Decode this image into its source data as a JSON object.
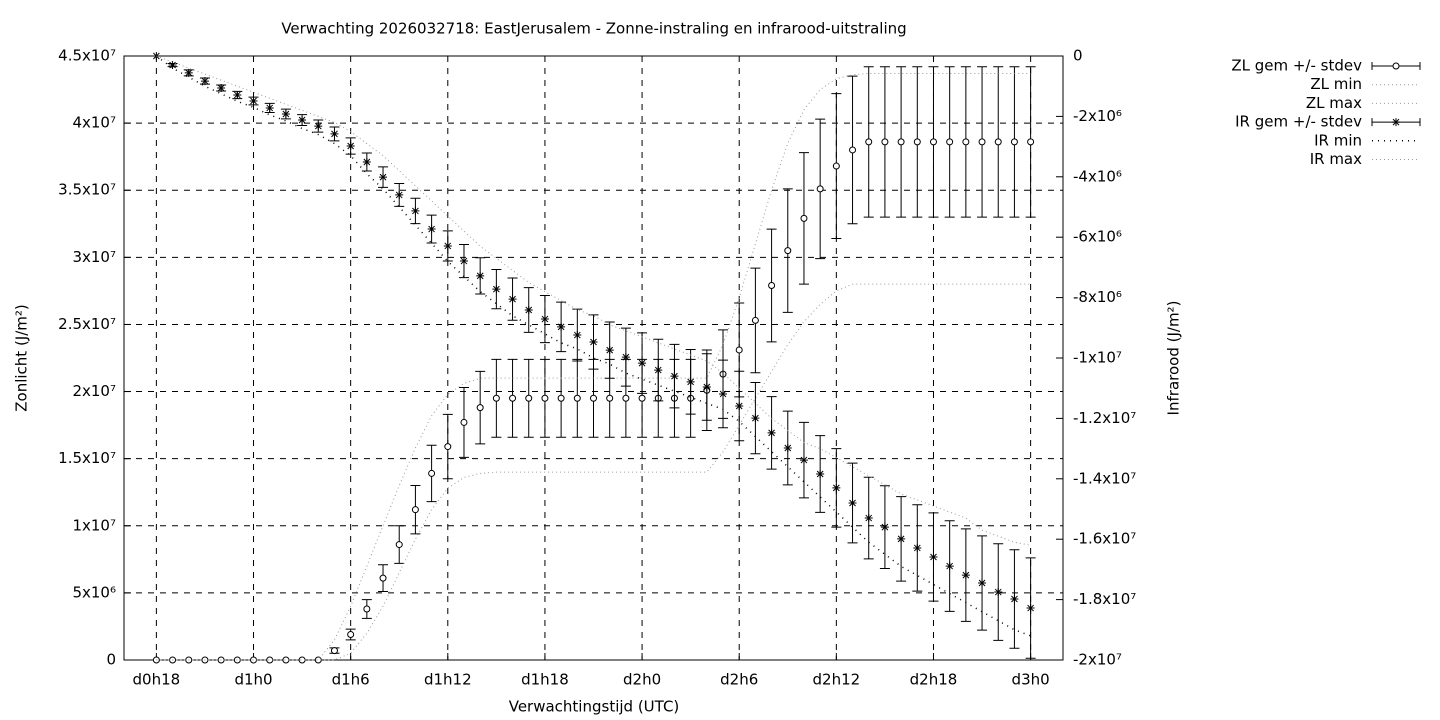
{
  "chart_data": {
    "type": "errorbar",
    "title": "Verwachting 2026032718: EastJerusalem - Zonne-instraling en infrarood-uitstraling",
    "x_label": "Verwachtingstijd (UTC)",
    "y_label": "Zonlicht (J/m²)",
    "y2_label": "Infrarood (J/m²)",
    "grid": true,
    "legend": "right",
    "xlim": [
      16,
      74
    ],
    "xticks": [
      {
        "value": 18,
        "label": "d0h18"
      },
      {
        "value": 24,
        "label": "d1h0"
      },
      {
        "value": 30,
        "label": "d1h6"
      },
      {
        "value": 36,
        "label": "d1h12"
      },
      {
        "value": 42,
        "label": "d1h18"
      },
      {
        "value": 48,
        "label": "d2h0"
      },
      {
        "value": 54,
        "label": "d2h6"
      },
      {
        "value": 60,
        "label": "d2h12"
      },
      {
        "value": 66,
        "label": "d2h18"
      },
      {
        "value": 72,
        "label": "d3h0"
      }
    ],
    "ylim": [
      0,
      45000000.0
    ],
    "yticks": [
      0,
      {
        "value": 5000000.0,
        "label": "5x10⁶"
      },
      {
        "value": 10000000.0,
        "label": "1x10⁷"
      },
      {
        "value": 15000000.0,
        "label": "1.5x10⁷"
      },
      {
        "value": 20000000.0,
        "label": "2x10⁷"
      },
      {
        "value": 25000000.0,
        "label": "2.5x10⁷"
      },
      {
        "value": 30000000.0,
        "label": "3x10⁷"
      },
      {
        "value": 35000000.0,
        "label": "3.5x10⁷"
      },
      {
        "value": 40000000.0,
        "label": "4x10⁷"
      },
      {
        "value": 45000000.0,
        "label": "4.5x10⁷"
      }
    ],
    "y2lim": [
      -20000000.0,
      0
    ],
    "y2ticks": [
      0,
      {
        "value": -2000000.0,
        "label": "-2x10⁶"
      },
      {
        "value": -4000000.0,
        "label": "-4x10⁶"
      },
      {
        "value": -6000000.0,
        "label": "-6x10⁶"
      },
      {
        "value": -8000000.0,
        "label": "-8x10⁶"
      },
      {
        "value": -10000000.0,
        "label": "-1x10⁷"
      },
      {
        "value": -12000000.0,
        "label": "-1.2x10⁷"
      },
      {
        "value": -14000000.0,
        "label": "-1.4x10⁷"
      },
      {
        "value": -16000000.0,
        "label": "-1.6x10⁷"
      },
      {
        "value": -18000000.0,
        "label": "-1.8x10⁷"
      },
      {
        "value": -20000000.0,
        "label": "-2x10⁷"
      }
    ],
    "x": [
      18,
      19,
      20,
      21,
      22,
      23,
      24,
      25,
      26,
      27,
      28,
      29,
      30,
      31,
      32,
      33,
      34,
      35,
      36,
      37,
      38,
      39,
      40,
      41,
      42,
      43,
      44,
      45,
      46,
      47,
      48,
      49,
      50,
      51,
      52,
      53,
      54,
      55,
      56,
      57,
      58,
      59,
      60,
      61,
      62,
      63,
      64,
      65,
      66,
      67,
      68,
      69,
      70,
      71,
      72
    ],
    "series": [
      {
        "name": "ZL gem +/- stdev",
        "style": "errorbar-circle",
        "color": "#000000",
        "axis": "y",
        "values": [
          0,
          0,
          0,
          0,
          0,
          0,
          0,
          0,
          0,
          0,
          0,
          700000.0,
          1900000.0,
          3800000.0,
          6100000.0,
          8600000.0,
          11200000.0,
          13900000.0,
          15900000.0,
          17700000.0,
          18800000.0,
          19500000.0,
          19500000.0,
          19500000.0,
          19500000.0,
          19500000.0,
          19500000.0,
          19500000.0,
          19500000.0,
          19500000.0,
          19500000.0,
          19500000.0,
          19500000.0,
          19500000.0,
          20100000.0,
          21300000.0,
          23100000.0,
          25300000.0,
          27900000.0,
          30500000.0,
          32900000.0,
          35100000.0,
          36800000.0,
          38000000.0,
          38600000.0,
          38600000.0,
          38600000.0,
          38600000.0,
          38600000.0,
          38600000.0,
          38600000.0,
          38600000.0,
          38600000.0,
          38600000.0,
          38600000.0
        ],
        "errors": [
          0,
          0,
          0,
          0,
          0,
          0,
          0,
          0,
          0,
          0,
          0,
          200000.0,
          400000.0,
          700000.0,
          1000000.0,
          1400000.0,
          1800000.0,
          2100000.0,
          2400000.0,
          2600000.0,
          2700000.0,
          2900000.0,
          2900000.0,
          2900000.0,
          2900000.0,
          2900000.0,
          2900000.0,
          2900000.0,
          2900000.0,
          2900000.0,
          2900000.0,
          2900000.0,
          2900000.0,
          2900000.0,
          3000000.0,
          3300000.0,
          3500000.0,
          3900000.0,
          4200000.0,
          4600000.0,
          4900000.0,
          5200000.0,
          5400000.0,
          5500000.0,
          5600000.0,
          5600000.0,
          5600000.0,
          5600000.0,
          5600000.0,
          5600000.0,
          5600000.0,
          5600000.0,
          5600000.0,
          5600000.0,
          5600000.0
        ]
      },
      {
        "name": "ZL min",
        "style": "dotted",
        "color": "#999999",
        "axis": "y",
        "values": [
          0,
          0,
          0,
          0,
          0,
          0,
          0,
          0,
          0,
          0,
          0,
          0,
          500000.0,
          2000000.0,
          4000000.0,
          6500000.0,
          9000000.0,
          11200000.0,
          12800000.0,
          13600000.0,
          13900000.0,
          14000000.0,
          14000000.0,
          14000000.0,
          14000000.0,
          14000000.0,
          14000000.0,
          14000000.0,
          14000000.0,
          14000000.0,
          14000000.0,
          14000000.0,
          14000000.0,
          14000000.0,
          14000000.0,
          15500000.0,
          17500000.0,
          19500000.0,
          21500000.0,
          23500000.0,
          25200000.0,
          26500000.0,
          27500000.0,
          28000000.0,
          28000000.0,
          28000000.0,
          28000000.0,
          28000000.0,
          28000000.0,
          28000000.0,
          28000000.0,
          28000000.0,
          28000000.0,
          28000000.0,
          28000000.0
        ]
      },
      {
        "name": "ZL max",
        "style": "dotted",
        "color": "#999999",
        "axis": "y",
        "values": [
          0,
          0,
          0,
          0,
          0,
          0,
          0,
          0,
          0,
          0,
          0,
          1500000.0,
          4000000.0,
          7000000.0,
          10000000.0,
          13000000.0,
          15800000.0,
          18200000.0,
          19800000.0,
          20600000.0,
          21000000.0,
          21000000.0,
          21000000.0,
          21000000.0,
          21000000.0,
          21000000.0,
          21000000.0,
          21000000.0,
          21000000.0,
          21000000.0,
          21000000.0,
          21000000.0,
          21000000.0,
          21000000.0,
          21000000.0,
          23500000.0,
          27000000.0,
          31000000.0,
          35000000.0,
          38500000.0,
          41000000.0,
          42500000.0,
          43300000.0,
          43600000.0,
          43700000.0,
          43700000.0,
          43700000.0,
          43700000.0,
          43700000.0,
          43700000.0,
          43700000.0,
          43700000.0,
          43700000.0,
          43700000.0,
          43700000.0
        ]
      },
      {
        "name": "IR gem +/- stdev",
        "style": "errorbar-star",
        "color": "#000000",
        "axis": "y2",
        "values": [
          0,
          -300000.0,
          -560000.0,
          -830000.0,
          -1060000.0,
          -1290000.0,
          -1490000.0,
          -1720000.0,
          -1920000.0,
          -2120000.0,
          -2320000.0,
          -2580000.0,
          -2980000.0,
          -3510000.0,
          -4010000.0,
          -4600000.0,
          -5130000.0,
          -5730000.0,
          -6290000.0,
          -6790000.0,
          -7280000.0,
          -7720000.0,
          -8050000.0,
          -8410000.0,
          -8710000.0,
          -8970000.0,
          -9240000.0,
          -9470000.0,
          -9740000.0,
          -9970000.0,
          -10170000.0,
          -10400000.0,
          -10600000.0,
          -10790000.0,
          -10960000.0,
          -11190000.0,
          -11590000.0,
          -11990000.0,
          -12480000.0,
          -12980000.0,
          -13380000.0,
          -13840000.0,
          -14300000.0,
          -14800000.0,
          -15300000.0,
          -15600000.0,
          -15990000.0,
          -16290000.0,
          -16590000.0,
          -16890000.0,
          -17190000.0,
          -17450000.0,
          -17750000.0,
          -17980000.0,
          -18280000.0
        ],
        "errors": [
          0,
          50000.0,
          100000.0,
          100000.0,
          100000.0,
          120000.0,
          130000.0,
          150000.0,
          160000.0,
          180000.0,
          200000.0,
          230000.0,
          270000.0,
          300000.0,
          340000.0,
          380000.0,
          420000.0,
          460000.0,
          500000.0,
          550000.0,
          600000.0,
          650000.0,
          700000.0,
          740000.0,
          780000.0,
          820000.0,
          860000.0,
          900000.0,
          930000.0,
          960000.0,
          1000000.0,
          1020000.0,
          1050000.0,
          1070000.0,
          1100000.0,
          1120000.0,
          1150000.0,
          1180000.0,
          1200000.0,
          1220000.0,
          1250000.0,
          1270000.0,
          1300000.0,
          1320000.0,
          1350000.0,
          1370000.0,
          1400000.0,
          1430000.0,
          1460000.0,
          1500000.0,
          1530000.0,
          1560000.0,
          1600000.0,
          1630000.0,
          1660000.0
        ]
      },
      {
        "name": "IR min",
        "style": "dashdot",
        "color": "#000000",
        "axis": "y2",
        "values": [
          0,
          -400000.0,
          -700000.0,
          -1000000.0,
          -1250000.0,
          -1500000.0,
          -1700000.0,
          -1950000.0,
          -2150000.0,
          -2400000.0,
          -2600000.0,
          -2900000.0,
          -3300000.0,
          -3900000.0,
          -4400000.0,
          -5000000.0,
          -5600000.0,
          -6200000.0,
          -6800000.0,
          -7300000.0,
          -7800000.0,
          -8200000.0,
          -8600000.0,
          -8900000.0,
          -9200000.0,
          -9500000.0,
          -9700000.0,
          -10000000.0,
          -10200000.0,
          -10500000.0,
          -10700000.0,
          -10900000.0,
          -11100000.0,
          -11300000.0,
          -11500000.0,
          -11700000.0,
          -12100000.0,
          -12600000.0,
          -13100000.0,
          -13600000.0,
          -14100000.0,
          -14600000.0,
          -15100000.0,
          -15600000.0,
          -16100000.0,
          -16500000.0,
          -16900000.0,
          -17200000.0,
          -17500000.0,
          -17800000.0,
          -18100000.0,
          -18400000.0,
          -18700000.0,
          -19000000.0,
          -19200000.0
        ]
      },
      {
        "name": "IR max",
        "style": "dotted",
        "color": "#999999",
        "axis": "y2",
        "values": [
          0,
          -200000.0,
          -400000.0,
          -600000.0,
          -800000.0,
          -1000000.0,
          -1200000.0,
          -1400000.0,
          -1600000.0,
          -1800000.0,
          -2000000.0,
          -2200000.0,
          -2500000.0,
          -2900000.0,
          -3300000.0,
          -3800000.0,
          -4300000.0,
          -4800000.0,
          -5300000.0,
          -5800000.0,
          -6300000.0,
          -6700000.0,
          -7100000.0,
          -7500000.0,
          -7800000.0,
          -8100000.0,
          -8400000.0,
          -8600000.0,
          -8900000.0,
          -9100000.0,
          -9300000.0,
          -9500000.0,
          -9700000.0,
          -9900000.0,
          -10100000.0,
          -10500000.0,
          -11000000.0,
          -11500000.0,
          -12000000.0,
          -12400000.0,
          -12800000.0,
          -13000000.0,
          -13300000.0,
          -13600000.0,
          -13900000.0,
          -14200000.0,
          -14500000.0,
          -14700000.0,
          -14900000.0,
          -15100000.0,
          -15300000.0,
          -15700000.0,
          -15900000.0,
          -16100000.0,
          -16200000.0
        ]
      }
    ]
  }
}
